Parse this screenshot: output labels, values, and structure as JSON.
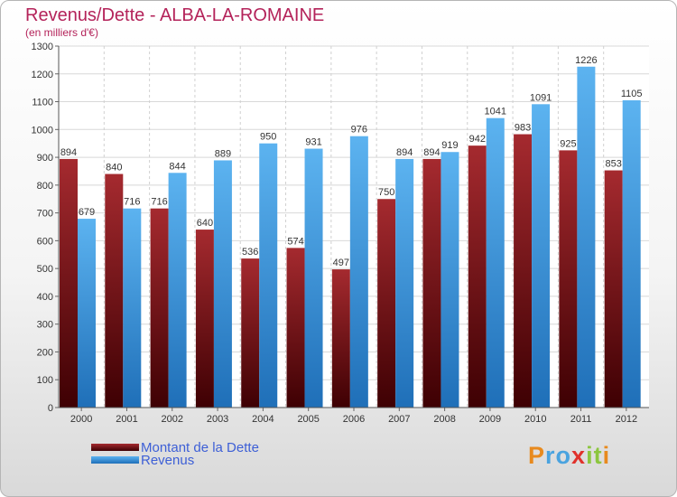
{
  "chart_data": {
    "type": "bar",
    "title": "Revenus/Dette - ALBA-LA-ROMAINE",
    "subtitle": "(en milliers d'€)",
    "categories": [
      "2000",
      "2001",
      "2002",
      "2003",
      "2004",
      "2005",
      "2006",
      "2007",
      "2008",
      "2009",
      "2010",
      "2011",
      "2012"
    ],
    "series": [
      {
        "name": "Montant de la Dette",
        "values": [
          894,
          840,
          716,
          640,
          536,
          574,
          497,
          750,
          894,
          942,
          983,
          925,
          853
        ],
        "color": "#8b1a1e"
      },
      {
        "name": "Revenus",
        "values": [
          679,
          716,
          844,
          889,
          950,
          931,
          976,
          894,
          919,
          1041,
          1091,
          1226,
          1105
        ],
        "color": "#3e9be0"
      }
    ],
    "ylim": [
      0,
      1300
    ],
    "yticks": [
      0,
      100,
      200,
      300,
      400,
      500,
      600,
      700,
      800,
      900,
      1000,
      1100,
      1200,
      1300
    ],
    "grid": true,
    "xlabel": "",
    "ylabel": "",
    "legend_position": "bottom-left"
  },
  "logo": {
    "letters": [
      "P",
      "r",
      "o",
      "x",
      "i",
      "t",
      "i"
    ],
    "colors": [
      "#e88a1e",
      "#4aa3df",
      "#4aa3df",
      "#e0312b",
      "#8cc63f",
      "#8cc63f",
      "#e88a1e"
    ]
  }
}
